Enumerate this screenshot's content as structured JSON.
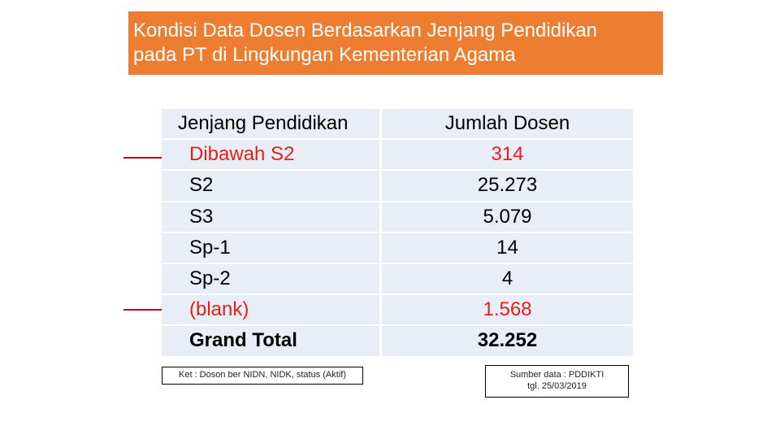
{
  "title": {
    "line1": "Kondisi Data Dosen Berdasarkan Jenjang Pendidikan",
    "line2": "pada PT di Lingkungan Kementerian Agama"
  },
  "table": {
    "headers": [
      "Jenjang Pendidikan",
      "Jumlah Dosen"
    ],
    "rows": [
      {
        "jenjang": "Dibawah S2",
        "jumlah": "314"
      },
      {
        "jenjang": "S2",
        "jumlah": "25.273"
      },
      {
        "jenjang": "S3",
        "jumlah": "5.079"
      },
      {
        "jenjang": "Sp-1",
        "jumlah": "14"
      },
      {
        "jenjang": "Sp-2",
        "jumlah": "4"
      },
      {
        "jenjang": "(blank)",
        "jumlah": "1.568"
      },
      {
        "jenjang": "Grand Total",
        "jumlah": "32.252"
      }
    ]
  },
  "notes": {
    "left": "Ket : Doson ber NIDN, NIDK, status (Aktif)",
    "right_line1": "Sumber data : PDDIKTI",
    "right_line2": "tgl. 25/03/2019"
  },
  "colors": {
    "title_bg": "#ED7D31",
    "highlight_red": "#E0201A",
    "arrow": "#C00000",
    "table_bg": "#E9EDF5"
  }
}
